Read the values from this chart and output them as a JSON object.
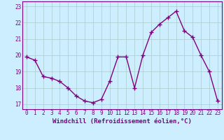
{
  "x": [
    0,
    1,
    2,
    3,
    4,
    5,
    6,
    7,
    8,
    9,
    10,
    11,
    12,
    13,
    14,
    15,
    16,
    17,
    18,
    19,
    20,
    21,
    22,
    23
  ],
  "y": [
    19.9,
    19.7,
    18.7,
    18.6,
    18.4,
    18.0,
    17.5,
    17.2,
    17.1,
    17.3,
    18.4,
    19.9,
    19.9,
    18.0,
    20.0,
    21.4,
    21.9,
    22.3,
    22.7,
    21.5,
    21.1,
    20.0,
    19.0,
    17.2
  ],
  "line_color": "#800080",
  "marker": "+",
  "markersize": 4,
  "markeredgewidth": 1.0,
  "linewidth": 1.0,
  "bg_color": "#cceeff",
  "grid_color": "#aacccc",
  "xlabel": "Windchill (Refroidissement éolien,°C)",
  "xlim": [
    -0.5,
    23.5
  ],
  "ylim": [
    16.7,
    23.3
  ],
  "yticks": [
    17,
    18,
    19,
    20,
    21,
    22,
    23
  ],
  "xticks": [
    0,
    1,
    2,
    3,
    4,
    5,
    6,
    7,
    8,
    9,
    10,
    11,
    12,
    13,
    14,
    15,
    16,
    17,
    18,
    19,
    20,
    21,
    22,
    23
  ],
  "tick_color": "#800080",
  "label_color": "#800080",
  "tick_fontsize": 5.5,
  "xlabel_fontsize": 6.5
}
